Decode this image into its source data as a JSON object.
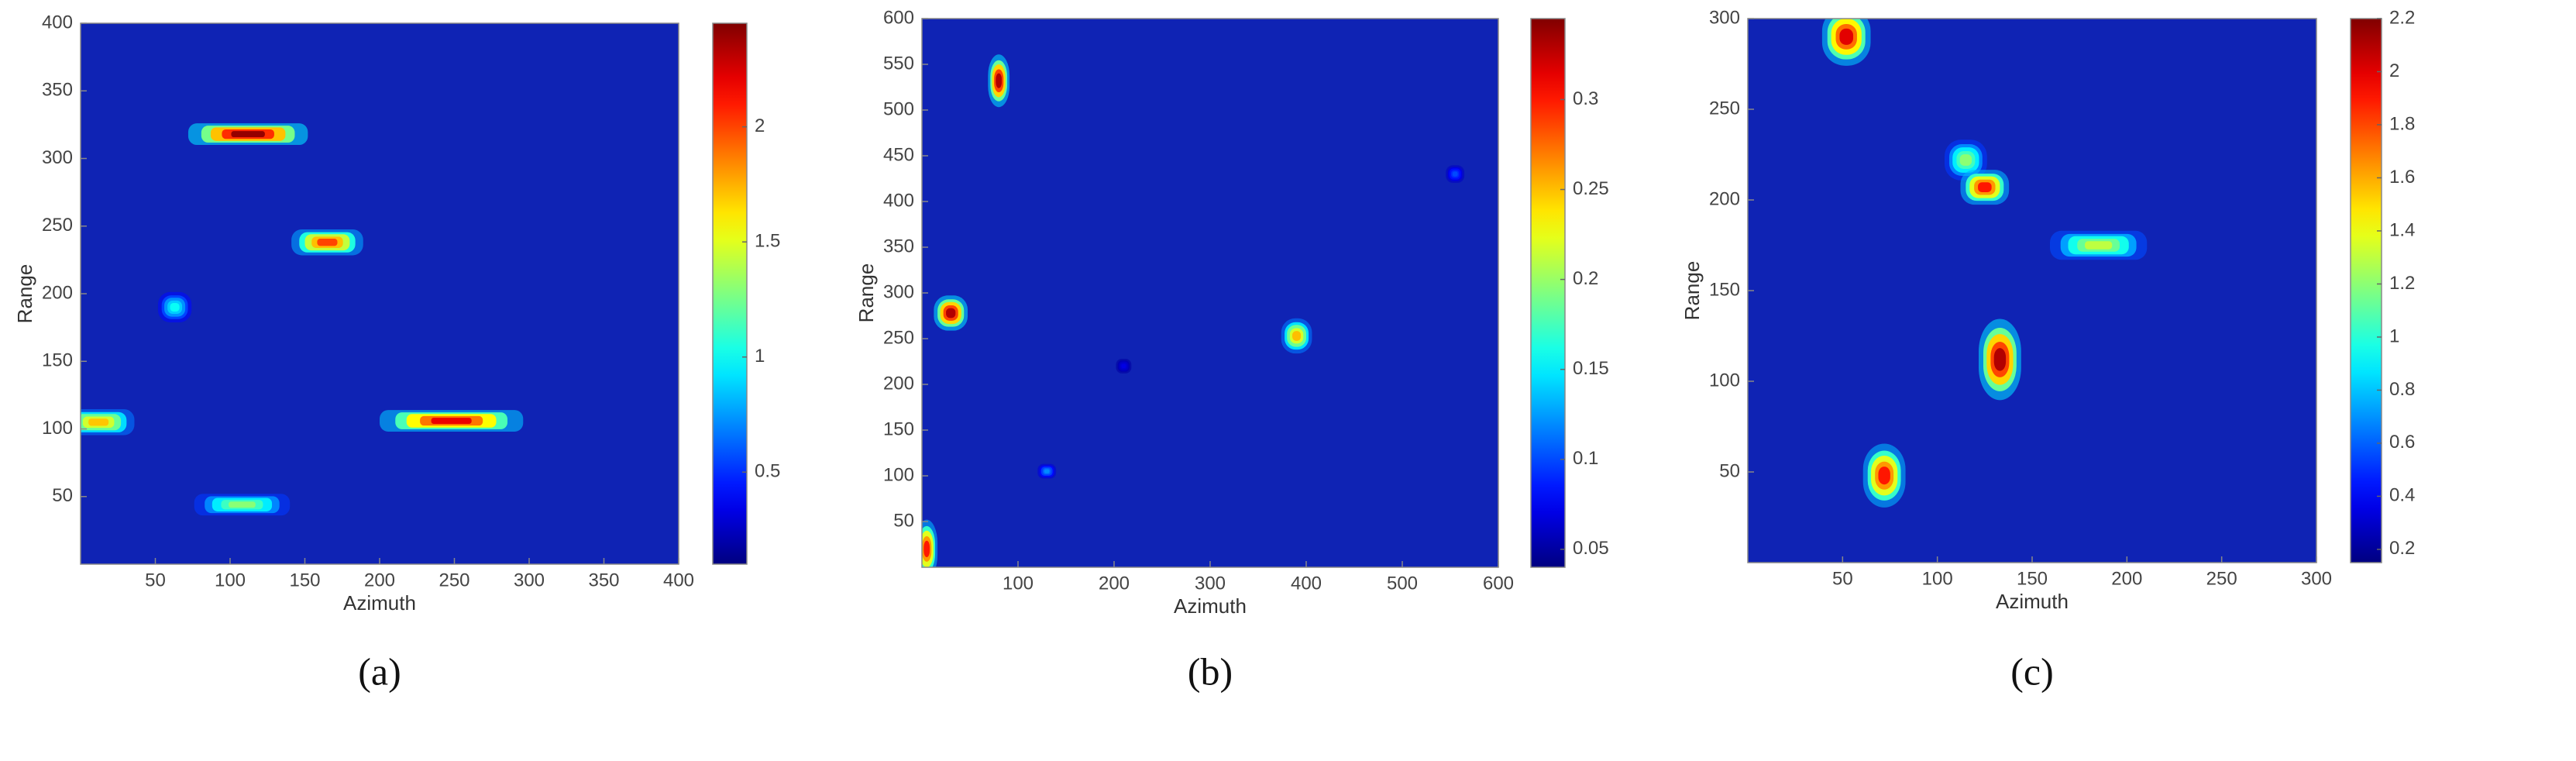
{
  "chart_data": [
    {
      "type": "heatmap",
      "caption": "(a)",
      "x_label": "Azimuth",
      "y_label": "Range",
      "xlim": [
        0,
        400
      ],
      "ylim": [
        0,
        400
      ],
      "xticks": [
        50,
        100,
        150,
        200,
        250,
        300,
        350,
        400
      ],
      "yticks": [
        50,
        100,
        150,
        200,
        250,
        300,
        350,
        400
      ],
      "colormap": "jet",
      "background": "#0f23b4",
      "colorbar": {
        "clim": [
          0.1,
          2.45
        ],
        "ticks": [
          0.5,
          1,
          1.5,
          2
        ]
      },
      "spots": [
        {
          "x": 112,
          "y": 318,
          "w": 50,
          "h": 10,
          "value": 2.4
        },
        {
          "x": 165,
          "y": 238,
          "w": 30,
          "h": 12,
          "value": 2.0
        },
        {
          "x": 63,
          "y": 190,
          "w": 14,
          "h": 14,
          "value": 1.0
        },
        {
          "x": 12,
          "y": 105,
          "w": 30,
          "h": 12,
          "value": 1.7
        },
        {
          "x": 248,
          "y": 106,
          "w": 60,
          "h": 10,
          "value": 2.2
        },
        {
          "x": 108,
          "y": 44,
          "w": 40,
          "h": 10,
          "value": 1.3
        }
      ]
    },
    {
      "type": "heatmap",
      "caption": "(b)",
      "x_label": "Azimuth",
      "y_label": "Range",
      "xlim": [
        0,
        600
      ],
      "ylim": [
        0,
        600
      ],
      "xticks": [
        100,
        200,
        300,
        400,
        500,
        600
      ],
      "yticks": [
        50,
        100,
        150,
        200,
        250,
        300,
        350,
        400,
        450,
        500,
        550,
        600
      ],
      "colormap": "jet",
      "background": "#0f23b4",
      "colorbar": {
        "clim": [
          0.04,
          0.345
        ],
        "ticks": [
          0.05,
          0.1,
          0.15,
          0.2,
          0.25,
          0.3
        ]
      },
      "spots": [
        {
          "x": 80,
          "y": 532,
          "w": 14,
          "h": 36,
          "value": 0.33
        },
        {
          "x": 30,
          "y": 278,
          "w": 22,
          "h": 24,
          "value": 0.33
        },
        {
          "x": 390,
          "y": 253,
          "w": 20,
          "h": 24,
          "value": 0.25
        },
        {
          "x": 130,
          "y": 105,
          "w": 12,
          "h": 10,
          "value": 0.12
        },
        {
          "x": 5,
          "y": 20,
          "w": 14,
          "h": 40,
          "value": 0.3
        },
        {
          "x": 555,
          "y": 430,
          "w": 12,
          "h": 12,
          "value": 0.1
        },
        {
          "x": 210,
          "y": 220,
          "w": 10,
          "h": 10,
          "value": 0.07
        }
      ]
    },
    {
      "type": "heatmap",
      "caption": "(c)",
      "x_label": "Azimuth",
      "y_label": "Range",
      "xlim": [
        0,
        300
      ],
      "ylim": [
        0,
        300
      ],
      "xticks": [
        50,
        100,
        150,
        200,
        250,
        300
      ],
      "yticks": [
        50,
        100,
        150,
        200,
        250,
        300
      ],
      "colormap": "jet",
      "background": "#0f23b4",
      "colorbar": {
        "clim": [
          0.15,
          2.2
        ],
        "ticks": [
          0.2,
          0.4,
          0.6,
          0.8,
          1,
          1.2,
          1.4,
          1.6,
          1.8,
          2,
          2.2
        ]
      },
      "spots": [
        {
          "x": 52,
          "y": 290,
          "w": 16,
          "h": 20,
          "value": 2.0
        },
        {
          "x": 115,
          "y": 222,
          "w": 14,
          "h": 14,
          "value": 1.2
        },
        {
          "x": 125,
          "y": 207,
          "w": 16,
          "h": 12,
          "value": 1.9
        },
        {
          "x": 185,
          "y": 175,
          "w": 32,
          "h": 10,
          "value": 1.3
        },
        {
          "x": 133,
          "y": 112,
          "w": 14,
          "h": 28,
          "value": 2.1
        },
        {
          "x": 72,
          "y": 48,
          "w": 14,
          "h": 22,
          "value": 1.9
        }
      ]
    }
  ]
}
